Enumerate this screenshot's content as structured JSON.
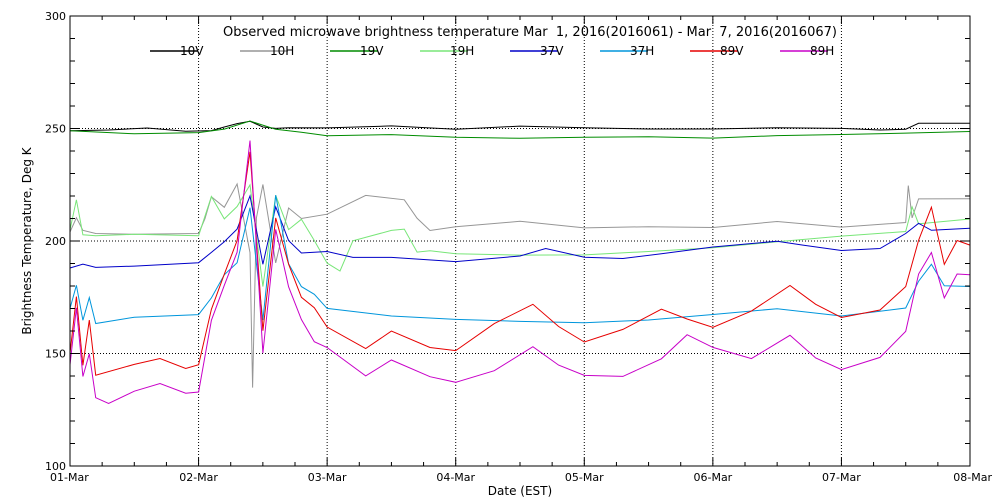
{
  "chart_data": {
    "type": "line",
    "title": "Observed microwave brightness temperature Mar  1, 2016(2016061) - Mar  7, 2016(2016067)",
    "xlabel": "Date (EST)",
    "ylabel": "Brightness Temperature, Deg K",
    "xlim": [
      0,
      7
    ],
    "ylim": [
      100,
      300
    ],
    "x_ticks": [
      "01-Mar",
      "02-Mar",
      "03-Mar",
      "04-Mar",
      "05-Mar",
      "06-Mar",
      "07-Mar",
      "08-Mar"
    ],
    "y_ticks": [
      "100",
      "150",
      "200",
      "250",
      "300"
    ],
    "reference_lines_dotted": [
      150,
      200,
      250
    ],
    "vertical_grid_dotted": true,
    "legend_position": "top",
    "series": [
      {
        "name": "10V",
        "color": "#000000",
        "x": [
          0,
          0.3,
          0.6,
          0.9,
          1.1,
          1.2,
          1.3,
          1.4,
          1.5,
          1.6,
          1.7,
          2.0,
          2.5,
          3.0,
          3.5,
          4.0,
          4.5,
          5.0,
          5.5,
          6.0,
          6.3,
          6.5,
          6.6,
          7.0
        ],
        "y": [
          249,
          249,
          250,
          249,
          249,
          251,
          252,
          253,
          251,
          250,
          250,
          250,
          251,
          250,
          251,
          250,
          250,
          250,
          250,
          250,
          249,
          250,
          252,
          252
        ]
      },
      {
        "name": "10H",
        "color": "#969696",
        "x": [
          0,
          0.05,
          0.1,
          0.2,
          0.5,
          1.0,
          1.05,
          1.1,
          1.2,
          1.3,
          1.4,
          1.42,
          1.45,
          1.5,
          1.6,
          1.7,
          1.8,
          2.0,
          2.3,
          2.6,
          2.7,
          2.8,
          3.0,
          3.5,
          4.0,
          4.5,
          5.0,
          5.5,
          6.0,
          6.5,
          6.52,
          6.55,
          6.6,
          7.0
        ],
        "y": [
          204,
          210,
          205,
          203,
          203,
          203,
          210,
          220,
          215,
          225,
          195,
          135,
          210,
          225,
          190,
          215,
          210,
          212,
          220,
          218,
          210,
          205,
          206,
          209,
          206,
          206,
          206,
          209,
          206,
          208,
          225,
          210,
          219,
          219
        ]
      },
      {
        "name": "19V",
        "color": "#008c00",
        "x": [
          0,
          0.5,
          1.0,
          1.2,
          1.4,
          1.6,
          1.8,
          2.0,
          2.5,
          3.0,
          3.5,
          4.0,
          4.5,
          5.0,
          5.5,
          6.0,
          6.5,
          7.0
        ],
        "y": [
          249,
          248,
          248,
          250,
          253,
          250,
          248,
          247,
          247,
          246,
          246,
          246,
          246,
          246,
          247,
          247,
          248,
          249
        ]
      },
      {
        "name": "19H",
        "color": "#78e678",
        "x": [
          0,
          0.05,
          0.1,
          0.2,
          0.5,
          1.0,
          1.1,
          1.2,
          1.3,
          1.4,
          1.5,
          1.6,
          1.7,
          1.8,
          1.9,
          2.0,
          2.1,
          2.2,
          2.5,
          2.6,
          2.7,
          2.8,
          3.0,
          3.5,
          4.0,
          4.5,
          5.0,
          5.5,
          6.0,
          6.5,
          6.55,
          6.6,
          6.7,
          7.0
        ],
        "y": [
          205,
          218,
          203,
          202,
          203,
          202,
          220,
          210,
          215,
          225,
          180,
          220,
          205,
          210,
          200,
          190,
          187,
          200,
          205,
          205,
          195,
          196,
          194,
          194,
          194,
          195,
          197,
          200,
          202,
          204,
          215,
          208,
          208,
          210
        ]
      },
      {
        "name": "37V",
        "color": "#0000c8",
        "x": [
          0,
          0.1,
          0.2,
          0.5,
          1.0,
          1.1,
          1.2,
          1.3,
          1.4,
          1.5,
          1.6,
          1.7,
          1.8,
          2.0,
          2.2,
          2.5,
          3.0,
          3.5,
          3.7,
          4.0,
          4.3,
          4.6,
          5.0,
          5.5,
          5.7,
          6.0,
          6.3,
          6.5,
          6.6,
          6.7,
          7.0
        ],
        "y": [
          188,
          190,
          188,
          189,
          190,
          195,
          200,
          205,
          220,
          190,
          215,
          200,
          195,
          195,
          193,
          193,
          191,
          193,
          197,
          193,
          192,
          194,
          197,
          200,
          198,
          196,
          197,
          203,
          208,
          205,
          206
        ]
      },
      {
        "name": "37H",
        "color": "#0096dc",
        "x": [
          0,
          0.05,
          0.1,
          0.15,
          0.2,
          0.5,
          1.0,
          1.1,
          1.2,
          1.3,
          1.4,
          1.5,
          1.6,
          1.7,
          1.8,
          1.9,
          2.0,
          2.5,
          3.0,
          3.5,
          4.0,
          4.5,
          5.0,
          5.5,
          6.0,
          6.5,
          6.6,
          6.7,
          6.8,
          7.0
        ],
        "y": [
          170,
          180,
          165,
          175,
          163,
          166,
          167,
          175,
          185,
          190,
          215,
          165,
          220,
          190,
          180,
          176,
          170,
          167,
          165,
          164,
          164,
          165,
          167,
          170,
          167,
          170,
          182,
          190,
          180,
          180
        ]
      },
      {
        "name": "89V",
        "color": "#e60000",
        "x": [
          0,
          0.05,
          0.1,
          0.15,
          0.2,
          0.5,
          0.7,
          0.9,
          1.0,
          1.1,
          1.2,
          1.3,
          1.4,
          1.5,
          1.6,
          1.7,
          1.8,
          1.9,
          2.0,
          2.3,
          2.5,
          2.8,
          3.0,
          3.3,
          3.6,
          3.8,
          4.0,
          4.3,
          4.6,
          4.8,
          5.0,
          5.3,
          5.6,
          5.8,
          6.0,
          6.3,
          6.5,
          6.6,
          6.7,
          6.8,
          6.9,
          7.0
        ],
        "y": [
          150,
          175,
          145,
          165,
          140,
          145,
          148,
          143,
          145,
          170,
          185,
          200,
          240,
          160,
          210,
          190,
          175,
          170,
          162,
          152,
          160,
          153,
          151,
          163,
          172,
          162,
          155,
          161,
          170,
          165,
          162,
          169,
          180,
          172,
          166,
          169,
          180,
          200,
          215,
          190,
          200,
          198
        ]
      },
      {
        "name": "89H",
        "color": "#c800c8",
        "x": [
          0,
          0.05,
          0.1,
          0.15,
          0.2,
          0.3,
          0.5,
          0.7,
          0.9,
          1.0,
          1.1,
          1.2,
          1.3,
          1.4,
          1.5,
          1.6,
          1.7,
          1.8,
          1.9,
          2.0,
          2.3,
          2.5,
          2.8,
          3.0,
          3.3,
          3.6,
          3.8,
          4.0,
          4.3,
          4.6,
          4.8,
          5.0,
          5.3,
          5.6,
          5.8,
          6.0,
          6.3,
          6.5,
          6.6,
          6.7,
          6.8,
          6.9,
          7.0
        ],
        "y": [
          145,
          170,
          140,
          150,
          130,
          128,
          133,
          137,
          132,
          133,
          165,
          180,
          195,
          245,
          150,
          205,
          180,
          165,
          155,
          153,
          140,
          147,
          140,
          137,
          142,
          153,
          145,
          140,
          140,
          148,
          158,
          153,
          148,
          158,
          148,
          143,
          148,
          160,
          185,
          195,
          175,
          185,
          185
        ]
      }
    ]
  }
}
